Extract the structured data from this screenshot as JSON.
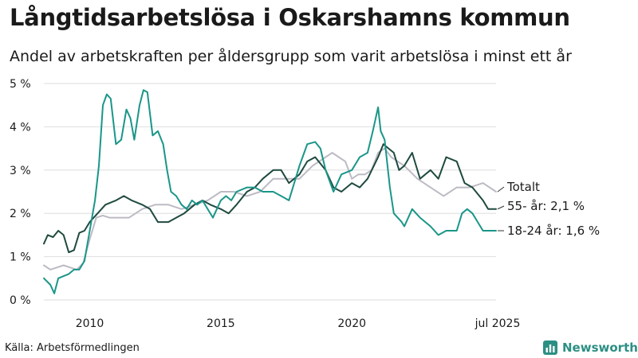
{
  "header": {
    "title": "Långtidsarbetslösa i Oskarshamns kommun",
    "subtitle": "Andel av arbetskraften per åldersgrupp som varit arbetslösa i minst ett år"
  },
  "footer": {
    "source": "Källa: Arbetsförmedlingen",
    "brand": "Newsworthy",
    "brand_icon": "chart-logo-icon"
  },
  "colors": {
    "youth": "#1a9688",
    "senior": "#1f4a40",
    "total": "#bdbac4",
    "grid": "#dedede",
    "brand": "#2c8f84"
  },
  "chart_data": {
    "type": "line",
    "title": "Långtidsarbetslösa i Oskarshamns kommun",
    "subtitle": "Andel av arbetskraften per åldersgrupp som varit arbetslösa i minst ett år",
    "xlabel": "",
    "ylabel": "",
    "xlim": [
      2008.25,
      2025.5
    ],
    "ylim": [
      0,
      5
    ],
    "grid": true,
    "y_ticks": [
      {
        "value": 0,
        "label": "0 %"
      },
      {
        "value": 1,
        "label": "1 %"
      },
      {
        "value": 2,
        "label": "2 %"
      },
      {
        "value": 3,
        "label": "3 %"
      },
      {
        "value": 4,
        "label": "4 %"
      },
      {
        "value": 5,
        "label": "5 %"
      }
    ],
    "x_ticks": [
      {
        "value": 2010,
        "label": "2010"
      },
      {
        "value": 2015,
        "label": "2015"
      },
      {
        "value": 2020,
        "label": "2020"
      },
      {
        "value": 2025.5,
        "label": "jul 2025"
      }
    ],
    "series": [
      {
        "name": "Totalt",
        "end_label": "Totalt",
        "color_key": "total",
        "x": [
          2008.25,
          2008.5,
          2008.75,
          2009,
          2009.25,
          2009.5,
          2009.75,
          2010,
          2010.25,
          2010.5,
          2010.75,
          2011,
          2011.5,
          2012,
          2012.5,
          2013,
          2013.5,
          2014,
          2014.5,
          2015,
          2015.5,
          2016,
          2016.5,
          2017,
          2017.5,
          2018,
          2018.5,
          2019,
          2019.25,
          2019.5,
          2019.75,
          2020,
          2020.25,
          2020.5,
          2020.75,
          2021,
          2021.25,
          2021.5,
          2021.75,
          2022,
          2022.5,
          2023,
          2023.5,
          2024,
          2024.5,
          2025,
          2025.5
        ],
        "y": [
          0.8,
          0.7,
          0.75,
          0.8,
          0.75,
          0.7,
          0.85,
          1.4,
          1.9,
          1.95,
          1.9,
          1.9,
          1.9,
          2.1,
          2.2,
          2.2,
          2.1,
          2.2,
          2.3,
          2.5,
          2.5,
          2.4,
          2.5,
          2.8,
          2.8,
          2.8,
          3.1,
          3.3,
          3.4,
          3.3,
          3.2,
          2.8,
          2.9,
          2.9,
          3.0,
          3.4,
          3.5,
          3.3,
          3.2,
          3.1,
          2.8,
          2.6,
          2.4,
          2.6,
          2.6,
          2.7,
          2.5
        ]
      },
      {
        "name": "55- år",
        "end_label": "55- år: 2,1 %",
        "color_key": "senior",
        "x": [
          2008.25,
          2008.4,
          2008.6,
          2008.8,
          2009,
          2009.2,
          2009.4,
          2009.6,
          2009.8,
          2010,
          2010.3,
          2010.6,
          2011,
          2011.3,
          2011.6,
          2012,
          2012.3,
          2012.6,
          2013,
          2013.3,
          2013.6,
          2014,
          2014.3,
          2014.6,
          2015,
          2015.3,
          2015.6,
          2016,
          2016.3,
          2016.6,
          2017,
          2017.3,
          2017.6,
          2018,
          2018.3,
          2018.6,
          2019,
          2019.3,
          2019.6,
          2020,
          2020.3,
          2020.6,
          2021,
          2021.2,
          2021.4,
          2021.6,
          2021.8,
          2022,
          2022.3,
          2022.6,
          2023,
          2023.3,
          2023.6,
          2024,
          2024.3,
          2024.6,
          2025,
          2025.2,
          2025.5
        ],
        "y": [
          1.3,
          1.5,
          1.45,
          1.6,
          1.5,
          1.1,
          1.15,
          1.55,
          1.6,
          1.8,
          2.0,
          2.2,
          2.3,
          2.4,
          2.3,
          2.2,
          2.1,
          1.8,
          1.8,
          1.9,
          2.0,
          2.2,
          2.3,
          2.2,
          2.1,
          2.0,
          2.2,
          2.5,
          2.6,
          2.8,
          3.0,
          3.0,
          2.7,
          2.9,
          3.2,
          3.3,
          3.0,
          2.6,
          2.5,
          2.7,
          2.6,
          2.8,
          3.3,
          3.6,
          3.5,
          3.4,
          3.0,
          3.1,
          3.4,
          2.8,
          3.0,
          2.8,
          3.3,
          3.2,
          2.7,
          2.6,
          2.3,
          2.1,
          2.1
        ]
      },
      {
        "name": "18-24 år",
        "end_label": "18-24 år: 1,6 %",
        "color_key": "youth",
        "x": [
          2008.25,
          2008.5,
          2008.65,
          2008.8,
          2009,
          2009.2,
          2009.4,
          2009.6,
          2009.8,
          2010,
          2010.2,
          2010.35,
          2010.5,
          2010.65,
          2010.8,
          2011,
          2011.2,
          2011.4,
          2011.55,
          2011.7,
          2011.9,
          2012.05,
          2012.2,
          2012.4,
          2012.6,
          2012.8,
          2012.95,
          2013.1,
          2013.3,
          2013.5,
          2013.7,
          2013.9,
          2014.1,
          2014.3,
          2014.5,
          2014.7,
          2015,
          2015.2,
          2015.4,
          2015.6,
          2016,
          2016.3,
          2016.6,
          2017,
          2017.3,
          2017.6,
          2018,
          2018.3,
          2018.6,
          2018.8,
          2019,
          2019.3,
          2019.6,
          2020,
          2020.3,
          2020.6,
          2020.8,
          2021,
          2021.1,
          2021.25,
          2021.45,
          2021.6,
          2021.75,
          2021.9,
          2022,
          2022.3,
          2022.6,
          2023,
          2023.3,
          2023.6,
          2024,
          2024.2,
          2024.4,
          2024.6,
          2024.8,
          2025,
          2025.2,
          2025.5
        ],
        "y": [
          0.5,
          0.35,
          0.15,
          0.5,
          0.55,
          0.6,
          0.7,
          0.7,
          0.9,
          1.6,
          2.3,
          3.1,
          4.5,
          4.75,
          4.65,
          3.6,
          3.7,
          4.4,
          4.2,
          3.7,
          4.5,
          4.85,
          4.8,
          3.8,
          3.9,
          3.6,
          3.0,
          2.5,
          2.4,
          2.2,
          2.1,
          2.3,
          2.2,
          2.3,
          2.1,
          1.9,
          2.3,
          2.4,
          2.3,
          2.5,
          2.6,
          2.6,
          2.5,
          2.5,
          2.4,
          2.3,
          3.1,
          3.6,
          3.65,
          3.5,
          3.0,
          2.5,
          2.9,
          3.0,
          3.3,
          3.4,
          3.9,
          4.45,
          3.9,
          3.7,
          2.6,
          2.0,
          1.9,
          1.8,
          1.7,
          2.1,
          1.9,
          1.7,
          1.5,
          1.6,
          1.6,
          2.0,
          2.1,
          2.0,
          1.8,
          1.6,
          1.6,
          1.6
        ]
      }
    ]
  }
}
